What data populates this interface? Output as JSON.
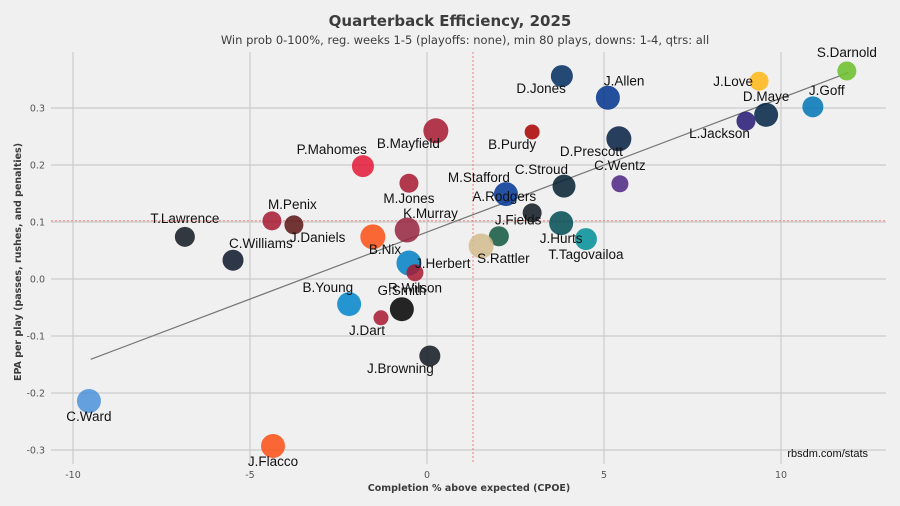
{
  "chart_data": {
    "type": "scatter",
    "title": "Quarterback Efficiency, 2025",
    "subtitle": "Win prob 0-100%, reg. weeks 1-5 (playoffs: none), min 80 plays, downs: 1-4, qtrs: all",
    "xlabel": "Completion % above expected (CPOE)",
    "ylabel": "EPA per play (passes, rushes, and penalties)",
    "xlim": [
      -10.7,
      12.9
    ],
    "ylim": [
      -0.33,
      0.395
    ],
    "xticks": [
      -10,
      -5,
      0,
      5,
      10
    ],
    "xtick_labels": [
      "-10",
      "-5",
      "0",
      "5",
      "10"
    ],
    "yticks": [
      -0.3,
      -0.2,
      -0.1,
      0.0,
      0.1,
      0.2,
      0.3
    ],
    "ytick_labels": [
      "-0.3",
      "-0.2",
      "-0.1",
      "0.0",
      "0.1",
      "0.2",
      "0.3"
    ],
    "grid": true,
    "reference_lines": {
      "mean_cpoe": 1.3,
      "mean_epa": 0.102,
      "color": "#ff6b6b"
    },
    "trendline": {
      "x": [
        -9.5,
        11.9
      ],
      "y": [
        -0.141,
        0.362
      ],
      "color": "#777777"
    },
    "credit": "rbsdm.com/stats",
    "points": [
      {
        "name": "S.Darnold",
        "x": 11.86,
        "y": 0.365,
        "size": 0.55,
        "color": "#69BE28",
        "label_pos": "above"
      },
      {
        "name": "J.Love",
        "x": 9.38,
        "y": 0.347,
        "size": 0.55,
        "color": "#FFB612",
        "label_pos": "left"
      },
      {
        "name": "J.Goff",
        "x": 10.9,
        "y": 0.302,
        "size": 0.65,
        "color": "#0076B6",
        "label_pos": "above-right"
      },
      {
        "name": "D.Maye",
        "x": 9.58,
        "y": 0.288,
        "size": 0.8,
        "color": "#002244",
        "label_pos": "above"
      },
      {
        "name": "L.Jackson",
        "x": 9.01,
        "y": 0.277,
        "size": 0.55,
        "color": "#241773",
        "label_pos": "below-left"
      },
      {
        "name": "C.Wentz",
        "x": 5.45,
        "y": 0.167,
        "size": 0.45,
        "color": "#4F2683",
        "label_pos": "above"
      },
      {
        "name": "D.Jones",
        "x": 3.81,
        "y": 0.356,
        "size": 0.7,
        "color": "#002C5F",
        "label_pos": "below-left"
      },
      {
        "name": "J.Allen",
        "x": 5.11,
        "y": 0.318,
        "size": 0.8,
        "color": "#00338D",
        "label_pos": "above-right"
      },
      {
        "name": "D.Prescott",
        "x": 5.42,
        "y": 0.246,
        "size": 0.85,
        "color": "#041E42",
        "label_pos": "below-left"
      },
      {
        "name": "B.Purdy",
        "x": 2.97,
        "y": 0.258,
        "size": 0.35,
        "color": "#AA0000",
        "label_pos": "below-left"
      },
      {
        "name": "B.Mayfield",
        "x": 0.25,
        "y": 0.26,
        "size": 0.85,
        "color": "#A71930",
        "label_pos": "below-left"
      },
      {
        "name": "P.Mahomes",
        "x": -1.81,
        "y": 0.198,
        "size": 0.7,
        "color": "#E31837",
        "label_pos": "above-left"
      },
      {
        "name": "M.Jones",
        "x": -0.51,
        "y": 0.168,
        "size": 0.55,
        "color": "#A71930",
        "label_pos": "below"
      },
      {
        "name": "M.Stafford",
        "x": 2.23,
        "y": 0.149,
        "size": 0.8,
        "color": "#003594",
        "label_pos": "above-left"
      },
      {
        "name": "C.Stroud",
        "x": 3.87,
        "y": 0.163,
        "size": 0.75,
        "color": "#03202F",
        "label_pos": "above-left"
      },
      {
        "name": "A.Rodgers",
        "x": 2.97,
        "y": 0.116,
        "size": 0.55,
        "color": "#101820",
        "label_pos": "above-left"
      },
      {
        "name": "J.Fields",
        "x": 2.03,
        "y": 0.075,
        "size": 0.6,
        "color": "#125740",
        "label_pos": "above-right"
      },
      {
        "name": "J.Hurts",
        "x": 3.79,
        "y": 0.098,
        "size": 0.8,
        "color": "#004C54",
        "label_pos": "below"
      },
      {
        "name": "T.Tagovailoa",
        "x": 4.49,
        "y": 0.07,
        "size": 0.7,
        "color": "#008E97",
        "label_pos": "below"
      },
      {
        "name": "S.Rattler",
        "x": 1.53,
        "y": 0.058,
        "size": 0.85,
        "color": "#D3BC8D",
        "label_pos": "below-right"
      },
      {
        "name": "K.Murray",
        "x": -0.56,
        "y": 0.086,
        "size": 0.85,
        "color": "#97233F",
        "label_pos": "above-right"
      },
      {
        "name": "B.Nix",
        "x": -1.53,
        "y": 0.074,
        "size": 0.85,
        "color": "#FB4F14",
        "label_pos": "below-right"
      },
      {
        "name": "J.Daniels",
        "x": -3.76,
        "y": 0.095,
        "size": 0.55,
        "color": "#5A1414",
        "label_pos": "below-right"
      },
      {
        "name": "M.Penix",
        "x": -4.38,
        "y": 0.102,
        "size": 0.55,
        "color": "#A71930",
        "label_pos": "above-right"
      },
      {
        "name": "T.Lawrence",
        "x": -6.84,
        "y": 0.074,
        "size": 0.6,
        "color": "#101820",
        "label_pos": "above"
      },
      {
        "name": "C.Williams",
        "x": -5.48,
        "y": 0.033,
        "size": 0.65,
        "color": "#0B162A",
        "label_pos": "above-right"
      },
      {
        "name": "J.Herbert",
        "x": -0.51,
        "y": 0.028,
        "size": 0.85,
        "color": "#0080C6",
        "label_pos": "right"
      },
      {
        "name": "R.Wilson",
        "x": -0.34,
        "y": 0.011,
        "size": 0.45,
        "color": "#A71930",
        "label_pos": "below"
      },
      {
        "name": "B.Young",
        "x": -2.2,
        "y": -0.044,
        "size": 0.8,
        "color": "#0085CA",
        "label_pos": "above-left"
      },
      {
        "name": "G.Smith",
        "x": -0.71,
        "y": -0.053,
        "size": 0.8,
        "color": "#000000",
        "label_pos": "above"
      },
      {
        "name": "J.Dart",
        "x": -1.3,
        "y": -0.068,
        "size": 0.35,
        "color": "#A71930",
        "label_pos": "below-left"
      },
      {
        "name": "J.Browning",
        "x": 0.08,
        "y": -0.135,
        "size": 0.65,
        "color": "#101820",
        "label_pos": "below-left"
      },
      {
        "name": "C.Ward",
        "x": -9.55,
        "y": -0.214,
        "size": 0.8,
        "color": "#4B92DB",
        "label_pos": "below"
      },
      {
        "name": "J.Flacco",
        "x": -4.35,
        "y": -0.293,
        "size": 0.8,
        "color": "#FB4F14",
        "label_pos": "below"
      }
    ]
  }
}
